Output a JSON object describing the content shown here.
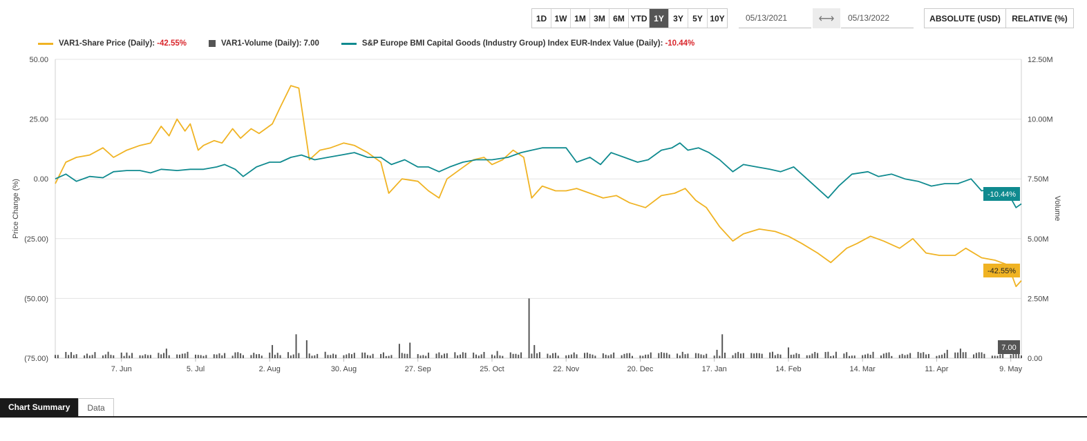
{
  "toolbar": {
    "ranges": [
      "1D",
      "1W",
      "1M",
      "3M",
      "6M",
      "YTD",
      "1Y",
      "3Y",
      "5Y",
      "10Y"
    ],
    "active_range": "1Y",
    "start_date": "05/13/2021",
    "end_date": "05/13/2022",
    "modes": [
      "ABSOLUTE (USD)",
      "RELATIVE (%)"
    ]
  },
  "legend": [
    {
      "label": "VAR1-Share Price (Daily):",
      "value": "-42.55%",
      "color": "#f0b323",
      "kind": "line",
      "value_negative": true
    },
    {
      "label": "VAR1-Volume (Daily):",
      "value": "7.00",
      "color": "#555555",
      "kind": "box",
      "value_negative": false
    },
    {
      "label": "S&P Europe BMI Capital Goods (Industry Group) Index EUR-Index Value (Daily):",
      "value": "-10.44%",
      "color": "#0f8a8f",
      "kind": "line",
      "value_negative": true
    }
  ],
  "tabs": [
    "Chart Summary",
    "Data"
  ],
  "chart_data": {
    "type": "line",
    "xlabel": "",
    "ylabel": "Price Change (%)",
    "y2label": "Volume",
    "ylim": [
      -75,
      50
    ],
    "y2lim": [
      0,
      12500000
    ],
    "y_ticks": [
      "50.00",
      "25.00",
      "0.00",
      "(25.00)",
      "(50.00)",
      "(75.00)"
    ],
    "y2_ticks": [
      "12.50M",
      "10.00M",
      "7.50M",
      "5.00M",
      "2.50M",
      "0.00"
    ],
    "x_ticks": [
      "7. Jun",
      "5. Jul",
      "2. Aug",
      "30. Aug",
      "27. Sep",
      "25. Oct",
      "22. Nov",
      "20. Dec",
      "17. Jan",
      "14. Feb",
      "14. Mar",
      "11. Apr",
      "9. May"
    ],
    "x_range": [
      "2021-05-13",
      "2022-05-13"
    ],
    "grid": true,
    "series": [
      {
        "name": "VAR1-Share Price (Daily)",
        "axis": "left",
        "color": "#f0b323",
        "end_label": "-42.55%",
        "points": [
          [
            "2021-05-13",
            -2
          ],
          [
            "2021-05-17",
            7
          ],
          [
            "2021-05-21",
            9
          ],
          [
            "2021-05-26",
            10
          ],
          [
            "2021-05-31",
            13
          ],
          [
            "2021-06-04",
            9
          ],
          [
            "2021-06-09",
            12
          ],
          [
            "2021-06-14",
            14
          ],
          [
            "2021-06-18",
            15
          ],
          [
            "2021-06-22",
            22
          ],
          [
            "2021-06-25",
            18
          ],
          [
            "2021-06-28",
            25
          ],
          [
            "2021-07-01",
            20
          ],
          [
            "2021-07-03",
            23
          ],
          [
            "2021-07-06",
            12
          ],
          [
            "2021-07-08",
            14
          ],
          [
            "2021-07-12",
            16
          ],
          [
            "2021-07-15",
            15
          ],
          [
            "2021-07-19",
            21
          ],
          [
            "2021-07-22",
            17
          ],
          [
            "2021-07-26",
            21
          ],
          [
            "2021-07-29",
            19
          ],
          [
            "2021-08-03",
            23
          ],
          [
            "2021-08-06",
            30
          ],
          [
            "2021-08-10",
            39
          ],
          [
            "2021-08-13",
            38
          ],
          [
            "2021-08-17",
            8
          ],
          [
            "2021-08-21",
            12
          ],
          [
            "2021-08-25",
            13
          ],
          [
            "2021-08-30",
            15
          ],
          [
            "2021-09-03",
            14
          ],
          [
            "2021-09-08",
            11
          ],
          [
            "2021-09-13",
            7
          ],
          [
            "2021-09-16",
            -6
          ],
          [
            "2021-09-21",
            0
          ],
          [
            "2021-09-27",
            -1
          ],
          [
            "2021-10-01",
            -5
          ],
          [
            "2021-10-05",
            -8
          ],
          [
            "2021-10-08",
            0
          ],
          [
            "2021-10-13",
            4
          ],
          [
            "2021-10-18",
            8
          ],
          [
            "2021-10-22",
            9
          ],
          [
            "2021-10-25",
            6
          ],
          [
            "2021-10-29",
            8
          ],
          [
            "2021-11-02",
            12
          ],
          [
            "2021-11-06",
            9
          ],
          [
            "2021-11-09",
            -8
          ],
          [
            "2021-11-13",
            -3
          ],
          [
            "2021-11-18",
            -5
          ],
          [
            "2021-11-22",
            -5
          ],
          [
            "2021-11-26",
            -4
          ],
          [
            "2021-12-01",
            -6
          ],
          [
            "2021-12-06",
            -8
          ],
          [
            "2021-12-11",
            -7
          ],
          [
            "2021-12-16",
            -10
          ],
          [
            "2021-12-22",
            -12
          ],
          [
            "2021-12-28",
            -7
          ],
          [
            "2022-01-02",
            -6
          ],
          [
            "2022-01-06",
            -4
          ],
          [
            "2022-01-10",
            -9
          ],
          [
            "2022-01-14",
            -12
          ],
          [
            "2022-01-19",
            -20
          ],
          [
            "2022-01-24",
            -26
          ],
          [
            "2022-01-28",
            -23
          ],
          [
            "2022-02-03",
            -21
          ],
          [
            "2022-02-09",
            -22
          ],
          [
            "2022-02-14",
            -24
          ],
          [
            "2022-02-19",
            -27
          ],
          [
            "2022-02-25",
            -31
          ],
          [
            "2022-03-02",
            -35
          ],
          [
            "2022-03-08",
            -29
          ],
          [
            "2022-03-12",
            -27
          ],
          [
            "2022-03-17",
            -24
          ],
          [
            "2022-03-22",
            -26
          ],
          [
            "2022-03-28",
            -29
          ],
          [
            "2022-04-02",
            -25
          ],
          [
            "2022-04-07",
            -31
          ],
          [
            "2022-04-12",
            -32
          ],
          [
            "2022-04-18",
            -32
          ],
          [
            "2022-04-22",
            -29
          ],
          [
            "2022-04-28",
            -33
          ],
          [
            "2022-05-03",
            -34
          ],
          [
            "2022-05-08",
            -36
          ],
          [
            "2022-05-11",
            -45
          ],
          [
            "2022-05-13",
            -42.55
          ]
        ]
      },
      {
        "name": "S&P Europe BMI Capital Goods (Industry Group) Index EUR-Index Value (Daily)",
        "axis": "left",
        "color": "#0f8a8f",
        "end_label": "-10.44%",
        "points": [
          [
            "2021-05-13",
            0
          ],
          [
            "2021-05-17",
            2
          ],
          [
            "2021-05-21",
            -1
          ],
          [
            "2021-05-26",
            1
          ],
          [
            "2021-05-31",
            0.5
          ],
          [
            "2021-06-04",
            3
          ],
          [
            "2021-06-09",
            3.5
          ],
          [
            "2021-06-14",
            3.5
          ],
          [
            "2021-06-18",
            2.5
          ],
          [
            "2021-06-22",
            4
          ],
          [
            "2021-06-28",
            3.5
          ],
          [
            "2021-07-03",
            4
          ],
          [
            "2021-07-08",
            4
          ],
          [
            "2021-07-13",
            5
          ],
          [
            "2021-07-16",
            6
          ],
          [
            "2021-07-20",
            4
          ],
          [
            "2021-07-23",
            1
          ],
          [
            "2021-07-28",
            5
          ],
          [
            "2021-08-02",
            7
          ],
          [
            "2021-08-06",
            7
          ],
          [
            "2021-08-10",
            9
          ],
          [
            "2021-08-14",
            10
          ],
          [
            "2021-08-19",
            8
          ],
          [
            "2021-08-24",
            9
          ],
          [
            "2021-08-29",
            10
          ],
          [
            "2021-09-03",
            11
          ],
          [
            "2021-09-08",
            9
          ],
          [
            "2021-09-13",
            9
          ],
          [
            "2021-09-17",
            6
          ],
          [
            "2021-09-22",
            8
          ],
          [
            "2021-09-27",
            5
          ],
          [
            "2021-10-01",
            5
          ],
          [
            "2021-10-05",
            3
          ],
          [
            "2021-10-09",
            5
          ],
          [
            "2021-10-14",
            7
          ],
          [
            "2021-10-19",
            8
          ],
          [
            "2021-10-25",
            8
          ],
          [
            "2021-10-31",
            9
          ],
          [
            "2021-11-05",
            11
          ],
          [
            "2021-11-09",
            12
          ],
          [
            "2021-11-13",
            13
          ],
          [
            "2021-11-17",
            13
          ],
          [
            "2021-11-22",
            13
          ],
          [
            "2021-11-26",
            7
          ],
          [
            "2021-12-01",
            9
          ],
          [
            "2021-12-05",
            6
          ],
          [
            "2021-12-09",
            11
          ],
          [
            "2021-12-14",
            9
          ],
          [
            "2021-12-19",
            7
          ],
          [
            "2021-12-23",
            8
          ],
          [
            "2021-12-28",
            12
          ],
          [
            "2022-01-01",
            13
          ],
          [
            "2022-01-04",
            15
          ],
          [
            "2022-01-07",
            12
          ],
          [
            "2022-01-11",
            13
          ],
          [
            "2022-01-15",
            11
          ],
          [
            "2022-01-19",
            8
          ],
          [
            "2022-01-24",
            3
          ],
          [
            "2022-01-28",
            6
          ],
          [
            "2022-02-02",
            5
          ],
          [
            "2022-02-07",
            4
          ],
          [
            "2022-02-11",
            3
          ],
          [
            "2022-02-16",
            5
          ],
          [
            "2022-02-20",
            1
          ],
          [
            "2022-02-25",
            -4
          ],
          [
            "2022-03-01",
            -8
          ],
          [
            "2022-03-05",
            -3
          ],
          [
            "2022-03-10",
            2
          ],
          [
            "2022-03-16",
            3
          ],
          [
            "2022-03-20",
            1
          ],
          [
            "2022-03-25",
            2
          ],
          [
            "2022-03-30",
            0
          ],
          [
            "2022-04-04",
            -1
          ],
          [
            "2022-04-09",
            -3
          ],
          [
            "2022-04-14",
            -2
          ],
          [
            "2022-04-19",
            -2
          ],
          [
            "2022-04-24",
            0
          ],
          [
            "2022-04-28",
            -5
          ],
          [
            "2022-05-03",
            -4
          ],
          [
            "2022-05-08",
            -6
          ],
          [
            "2022-05-11",
            -12
          ],
          [
            "2022-05-13",
            -10.44
          ]
        ]
      },
      {
        "name": "VAR1-Volume (Daily)",
        "axis": "right",
        "color": "#555555",
        "type": "bar",
        "end_label": "7.00",
        "base_value": 150000,
        "spikes": [
          [
            "2021-06-24",
            400000
          ],
          [
            "2021-06-27",
            350000
          ],
          [
            "2021-07-03",
            550000
          ],
          [
            "2021-08-03",
            550000
          ],
          [
            "2021-08-12",
            1000000
          ],
          [
            "2021-08-14",
            1150000
          ],
          [
            "2021-08-16",
            750000
          ],
          [
            "2021-09-20",
            600000
          ],
          [
            "2021-09-24",
            650000
          ],
          [
            "2021-10-27",
            300000
          ],
          [
            "2021-11-08",
            2500000
          ],
          [
            "2021-11-10",
            550000
          ],
          [
            "2022-01-20",
            1000000
          ],
          [
            "2022-01-22",
            750000
          ],
          [
            "2022-01-18",
            350000
          ],
          [
            "2022-02-14",
            450000
          ],
          [
            "2022-04-15",
            350000
          ],
          [
            "2022-04-20",
            400000
          ],
          [
            "2022-04-24",
            380000
          ],
          [
            "2022-05-08",
            300000
          ]
        ]
      }
    ]
  }
}
